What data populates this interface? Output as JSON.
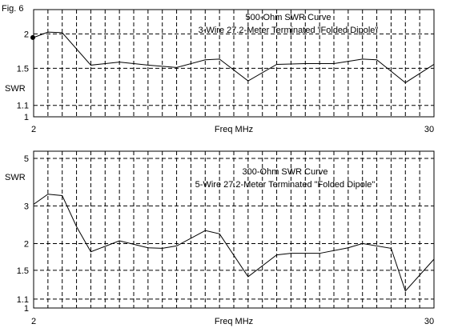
{
  "figure_label": "Fig. 6",
  "chart_data": [
    {
      "type": "line",
      "title": "500-Ohm SWR Curve",
      "subtitle": "3-Wire 27.2-Meter Terminated \"Folded Dipole\"",
      "xlabel": "Freq MHz",
      "ylabel": "SWR",
      "x_tick_labels": [
        "2",
        "30"
      ],
      "xlim": [
        2,
        30
      ],
      "y_scale": "log (SWR axis)",
      "y_ticks": [
        1,
        1.1,
        1.5,
        2
      ],
      "y_tick_labels": [
        "1",
        "1.1",
        "1.5",
        "2"
      ],
      "ylim": [
        1,
        2.45
      ],
      "x_grid_step": 1,
      "grid": true,
      "legend": "none",
      "marker": {
        "x": 2,
        "y": 1.94
      },
      "x": [
        2,
        3,
        4,
        6,
        8,
        10,
        12,
        14,
        15,
        17,
        19,
        21,
        23,
        25,
        26,
        28,
        30
      ],
      "y": [
        1.94,
        2.03,
        2.02,
        1.54,
        1.58,
        1.54,
        1.51,
        1.61,
        1.62,
        1.35,
        1.55,
        1.56,
        1.56,
        1.62,
        1.61,
        1.33,
        1.55
      ]
    },
    {
      "type": "line",
      "title": "300-Ohm SWR Curve",
      "subtitle": "5-Wire 27.2-Meter Terminated \"Folded Dipole\"",
      "xlabel": "Freq MHz",
      "ylabel": "SWR",
      "x_tick_labels": [
        "2",
        "30"
      ],
      "xlim": [
        2,
        30
      ],
      "y_scale": "log (SWR axis)",
      "y_ticks": [
        1,
        1.1,
        1.5,
        2,
        3,
        5
      ],
      "y_tick_labels": [
        "1",
        "1.1",
        "1.5",
        "2",
        "3",
        "5"
      ],
      "ylim": [
        1,
        5.4
      ],
      "x_grid_step": 1,
      "grid": true,
      "legend": "none",
      "x": [
        2,
        3,
        4,
        5,
        6,
        8,
        10,
        11,
        12,
        14,
        15,
        17,
        19,
        20,
        22,
        24,
        25,
        27,
        28,
        30
      ],
      "y": [
        3.05,
        3.4,
        3.35,
        2.4,
        1.83,
        2.06,
        1.91,
        1.9,
        1.95,
        2.3,
        2.22,
        1.4,
        1.77,
        1.8,
        1.8,
        1.91,
        2.0,
        1.9,
        1.2,
        1.69
      ]
    }
  ]
}
